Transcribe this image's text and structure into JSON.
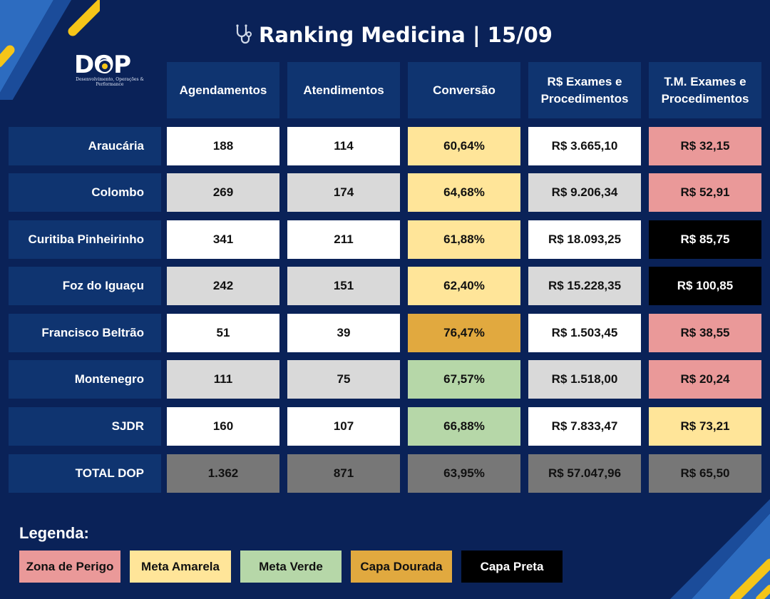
{
  "title": "Ranking Medicina | 15/09",
  "logo": {
    "brand": "DOP",
    "subtitle": "Desenvolvimento, Operações & Performance"
  },
  "headers": [
    [
      "Agendamentos"
    ],
    [
      "Atendimentos"
    ],
    [
      "Conversão"
    ],
    [
      "R$ Exames e",
      "Procedimentos"
    ],
    [
      "T.M. Exames e",
      "Procedimentos"
    ]
  ],
  "rows": [
    {
      "label": "Araucária",
      "cells": [
        "188",
        "114",
        "60,64%",
        "R$ 3.665,10",
        "R$ 32,15"
      ]
    },
    {
      "label": "Colombo",
      "cells": [
        "269",
        "174",
        "64,68%",
        "R$ 9.206,34",
        "R$ 52,91"
      ]
    },
    {
      "label": "Curitiba Pinheirinho",
      "cells": [
        "341",
        "211",
        "61,88%",
        "R$ 18.093,25",
        "R$ 85,75"
      ]
    },
    {
      "label": "Foz do Iguaçu",
      "cells": [
        "242",
        "151",
        "62,40%",
        "R$ 15.228,35",
        "R$ 100,85"
      ]
    },
    {
      "label": "Francisco Beltrão",
      "cells": [
        "51",
        "39",
        "76,47%",
        "R$ 1.503,45",
        "R$ 38,55"
      ]
    },
    {
      "label": "Montenegro",
      "cells": [
        "111",
        "75",
        "67,57%",
        "R$ 1.518,00",
        "R$ 20,24"
      ]
    },
    {
      "label": "SJDR",
      "cells": [
        "160",
        "107",
        "66,88%",
        "R$ 7.833,47",
        "R$ 73,21"
      ]
    },
    {
      "label": "TOTAL DOP",
      "cells": [
        "1.362",
        "871",
        "63,95%",
        "R$ 57.047,96",
        "R$ 65,50"
      ]
    }
  ],
  "legend": {
    "title": "Legenda:",
    "items": [
      "Zona de Perigo",
      "Meta Amarela",
      "Meta Verde",
      "Capa Dourada",
      "Capa Preta"
    ]
  },
  "colors": {
    "background": "#0a2258",
    "header": "#0f3470",
    "white": "#ffffff",
    "gray": "#d9d9d9",
    "total": "#777777",
    "zona_de_perigo": "#ea9999",
    "meta_amarela": "#ffe599",
    "meta_verde": "#b6d7a8",
    "capa_dourada": "#e1a93f",
    "capa_preta": "#000000",
    "accent_yellow": "#f5c518",
    "accent_blue": "#2d6cc0"
  },
  "icons": [
    "stethoscope-icon"
  ]
}
